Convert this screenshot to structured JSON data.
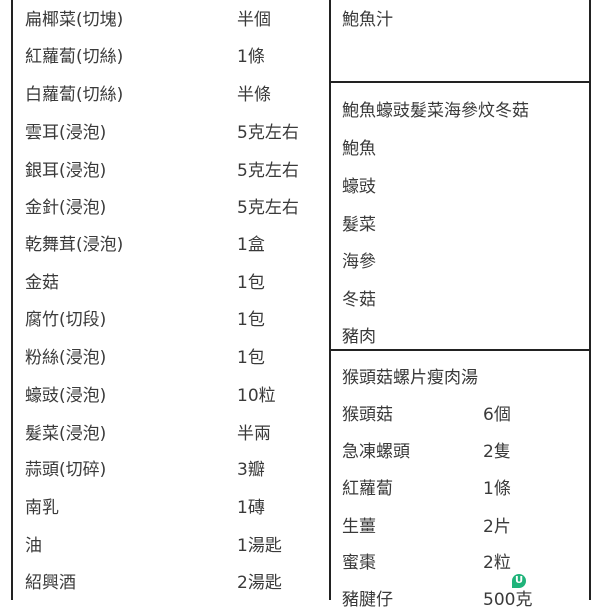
{
  "left_table": {
    "rows": [
      {
        "name": "扁椰菜(切塊)",
        "amount": "半個"
      },
      {
        "name": "紅蘿蔔(切絲)",
        "amount": "1條"
      },
      {
        "name": "白蘿蔔(切絲)",
        "amount": "半條"
      },
      {
        "name": "雲耳(浸泡)",
        "amount": "5克左右"
      },
      {
        "name": "銀耳(浸泡)",
        "amount": "5克左右"
      },
      {
        "name": "金針(浸泡)",
        "amount": "5克左右"
      },
      {
        "name": "乾舞茸(浸泡)",
        "amount": "1盒"
      },
      {
        "name": "金菇",
        "amount": "1包"
      },
      {
        "name": "腐竹(切段)",
        "amount": "1包"
      },
      {
        "name": "粉絲(浸泡)",
        "amount": "1包"
      },
      {
        "name": "蠔豉(浸泡)",
        "amount": "10粒"
      },
      {
        "name": "髮菜(浸泡)",
        "amount": "半兩"
      },
      {
        "name": "蒜頭(切碎)",
        "amount": "3瓣"
      },
      {
        "name": "南乳",
        "amount": "1磚"
      },
      {
        "name": "油",
        "amount": "1湯匙"
      },
      {
        "name": "紹興酒",
        "amount": "2湯匙"
      }
    ]
  },
  "right_table": {
    "section1": {
      "items": [
        "鮑魚汁"
      ]
    },
    "section2": {
      "title": "鮑魚蠔豉髮菜海參炆冬菇",
      "items": [
        "鮑魚",
        "蠔豉",
        "髮菜",
        "海參",
        "冬菇",
        "豬肉"
      ]
    },
    "section3": {
      "title": "猴頭菇螺片瘦肉湯",
      "rows": [
        {
          "name": "猴頭菇",
          "amount": "6個"
        },
        {
          "name": "急凍螺頭",
          "amount": "2隻"
        },
        {
          "name": "紅蘿蔔",
          "amount": "1條"
        },
        {
          "name": "生薑",
          "amount": "2片"
        },
        {
          "name": "蜜棗",
          "amount": "2粒"
        },
        {
          "name": "豬腱仔",
          "amount": "500克"
        }
      ]
    }
  },
  "badge": {
    "icon": "u-badge-icon",
    "label": "U",
    "color": "#1fb37a"
  }
}
